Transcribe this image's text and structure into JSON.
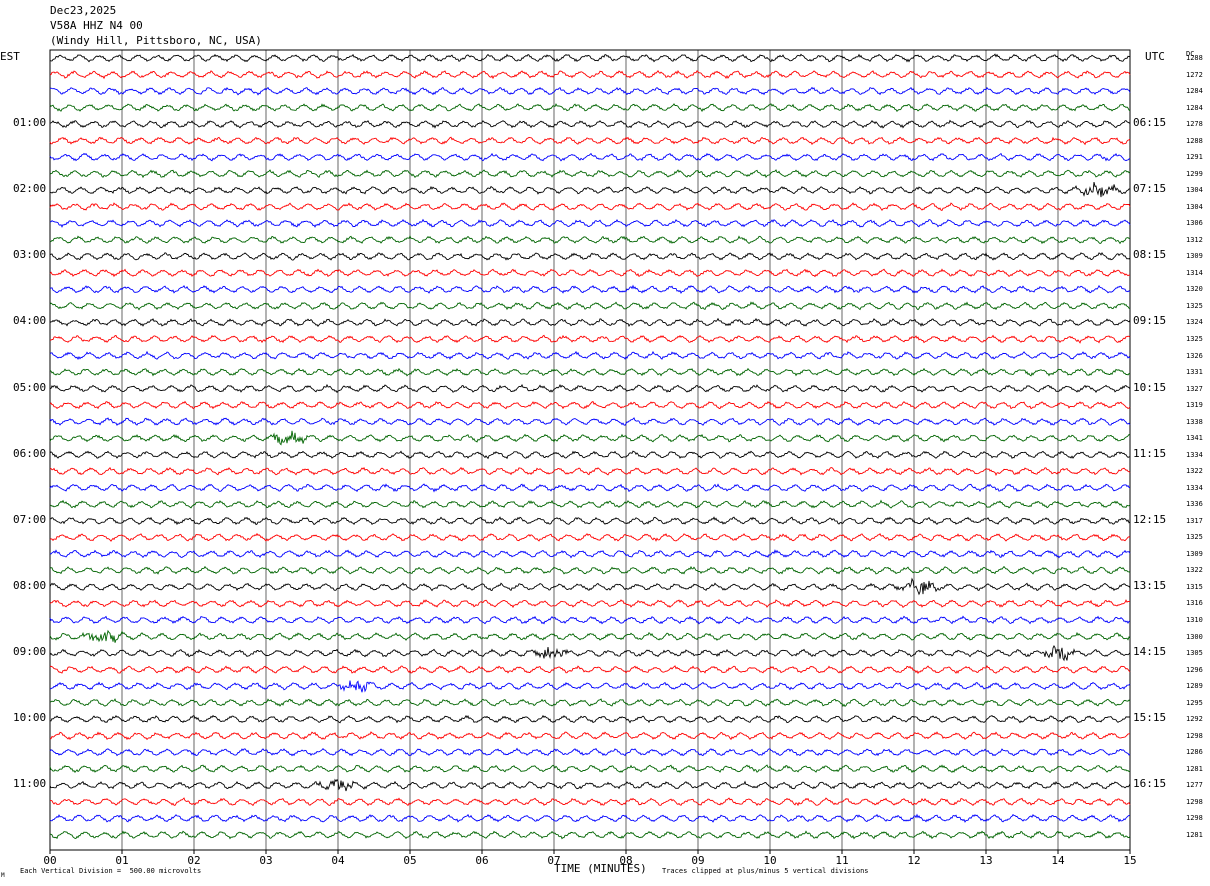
{
  "header": {
    "date": "Dec23,2025",
    "station": "V58A HHZ N4 00",
    "location": "(Windy Hill, Pittsboro, NC, USA)"
  },
  "left_axis_label": "EST",
  "right_axis_label": "UTC",
  "dc_label": "DC",
  "footer": {
    "scale_note": "Each Vertical Division =  500.00 microvolts",
    "clip_note": "Traces clipped at plus/minus 5 vertical divisions",
    "corner_mark": "M"
  },
  "colors": {
    "trace_cycle": [
      "#000000",
      "#ff0000",
      "#0000ff",
      "#006400"
    ],
    "grid": "#000000"
  },
  "chart_data": {
    "type": "line",
    "title": "",
    "xlabel": "TIME (MINUTES)",
    "ylabel": "",
    "x_range": [
      0,
      15
    ],
    "x_tick_labels": [
      "00",
      "01",
      "02",
      "03",
      "04",
      "05",
      "06",
      "07",
      "08",
      "09",
      "10",
      "11",
      "12",
      "13",
      "14",
      "15"
    ],
    "trace_count": 48,
    "traces_per_hour": 4,
    "minutes_per_trace": 15,
    "est_hour_labels": [
      "01:00",
      "02:00",
      "03:00",
      "04:00",
      "05:00",
      "06:00",
      "07:00",
      "08:00",
      "09:00",
      "10:00",
      "11:00"
    ],
    "est_label_trace_index": [
      4,
      8,
      12,
      16,
      20,
      24,
      28,
      32,
      36,
      40,
      44
    ],
    "utc_labels": [
      "06:15",
      "07:15",
      "08:15",
      "09:15",
      "10:15",
      "11:15",
      "12:15",
      "13:15",
      "14:15",
      "15:15",
      "16:15"
    ],
    "utc_label_trace_index": [
      4,
      8,
      12,
      16,
      20,
      24,
      28,
      32,
      36,
      40,
      44
    ],
    "dc_offsets": [
      1288,
      1272,
      1284,
      1284,
      1278,
      1288,
      1291,
      1299,
      1304,
      1304,
      1306,
      1312,
      1309,
      1314,
      1320,
      1325,
      1324,
      1325,
      1326,
      1331,
      1327,
      1319,
      1338,
      1341,
      1334,
      1322,
      1334,
      1336,
      1317,
      1325,
      1309,
      1322,
      1315,
      1316,
      1310,
      1300,
      1305,
      1296,
      1289,
      1295,
      1292,
      1298,
      1286,
      1281,
      1277,
      1298,
      1298,
      1281
    ],
    "notable_events": [
      {
        "trace": 23,
        "minute": 3.3
      },
      {
        "trace": 8,
        "minute": 14.55
      },
      {
        "trace": 32,
        "minute": 12.05
      },
      {
        "trace": 36,
        "minute": 14.0
      },
      {
        "trace": 36,
        "minute": 6.95
      },
      {
        "trace": 35,
        "minute": 0.75
      },
      {
        "trace": 38,
        "minute": 4.25
      },
      {
        "trace": 44,
        "minute": 4.0
      }
    ]
  }
}
